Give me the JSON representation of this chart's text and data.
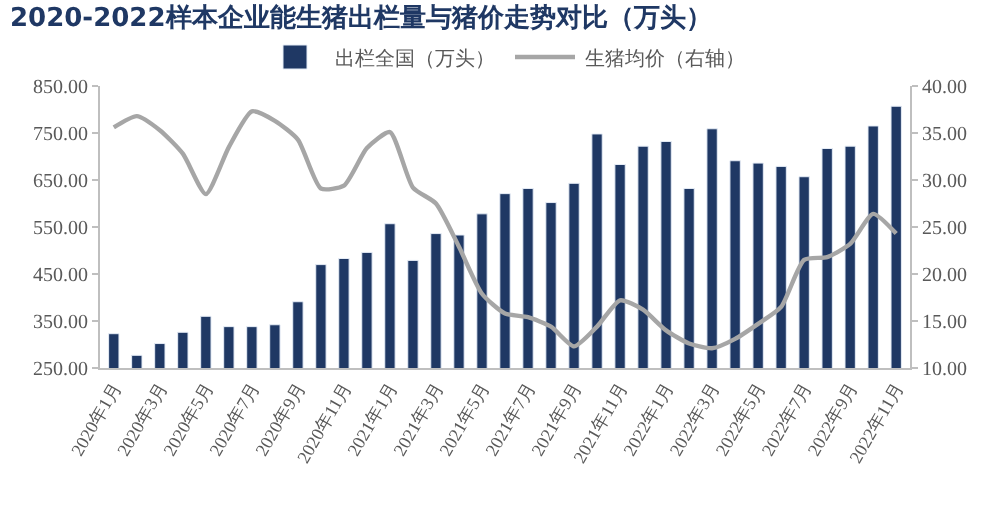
{
  "chart_data": {
    "type": "bar",
    "title": "2020-2022样本企业能生猪出栏量与猪价走势对比（万头）",
    "categories": [
      "2020年1月",
      null,
      "2020年3月",
      null,
      "2020年5月",
      null,
      "2020年7月",
      null,
      "2020年9月",
      null,
      "2020年11月",
      null,
      "2021年1月",
      null,
      "2021年3月",
      null,
      "2021年5月",
      null,
      "2021年7月",
      null,
      "2021年9月",
      null,
      "2021年11月",
      null,
      "2022年1月",
      null,
      "2022年3月",
      null,
      "2022年5月",
      null,
      "2022年7月",
      null,
      "2022年9月",
      null,
      "2022年11月"
    ],
    "series": [
      {
        "name": "出栏全国（万头）",
        "color": "#1f3864",
        "values": [
          323,
          277,
          302,
          326,
          360,
          338,
          338,
          342,
          391,
          470,
          483,
          496,
          557,
          479,
          536,
          533,
          578,
          621,
          632,
          602,
          643,
          748,
          683,
          722,
          732,
          632,
          759,
          691,
          686,
          679,
          657,
          717,
          722,
          765,
          807
        ]
      },
      {
        "name": "生猪均价（右轴）",
        "type": "line",
        "axis": "y2",
        "color": "#a6a6a6",
        "values": [
          35.6,
          36.8,
          35.3,
          32.8,
          28.5,
          33.5,
          37.3,
          36.3,
          34.3,
          29.1,
          29.4,
          33.4,
          35.1,
          29.2,
          27.5,
          22.9,
          17.9,
          15.8,
          15.4,
          14.4,
          12.3,
          14.4,
          17.2,
          16.2,
          14.0,
          12.6,
          12.1,
          13.1,
          14.7,
          16.5,
          21.5,
          21.8,
          23.2,
          26.4,
          24.3
        ]
      }
    ],
    "ylim": [
      250,
      850
    ],
    "yticks": [
      {
        "value": 250,
        "label": "250.00"
      },
      {
        "value": 350,
        "label": "350.00"
      },
      {
        "value": 450,
        "label": "450.00"
      },
      {
        "value": 550,
        "label": "550.00"
      },
      {
        "value": 650,
        "label": "650.00"
      },
      {
        "value": 750,
        "label": "750.00"
      },
      {
        "value": 850,
        "label": "850.00"
      }
    ],
    "y2lim": [
      10,
      40
    ],
    "y2ticks": [
      {
        "value": 10,
        "label": "10.00"
      },
      {
        "value": 15,
        "label": "15.00"
      },
      {
        "value": 20,
        "label": "20.00"
      },
      {
        "value": 25,
        "label": "25.00"
      },
      {
        "value": 30,
        "label": "30.00"
      },
      {
        "value": 35,
        "label": "35.00"
      },
      {
        "value": 40,
        "label": "40.00"
      }
    ],
    "grid": false,
    "legend": "top",
    "marker": "none",
    "line_style": "solid"
  }
}
